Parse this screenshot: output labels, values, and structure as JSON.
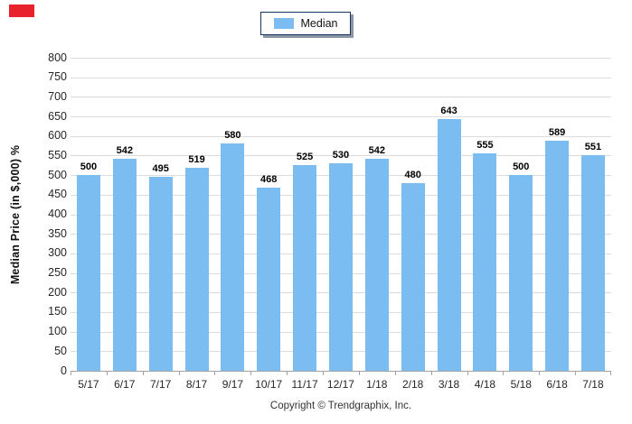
{
  "legend": {
    "label": "Median"
  },
  "footer": {
    "copyright": "Copyright © Trendgraphix, Inc."
  },
  "colors": {
    "bar": "#7CBDF1",
    "gridline": "#DCDCDC",
    "axis_line": "#A3A3A3",
    "tick_text": "#262626",
    "value_label": "#000000",
    "legend_border": "#16365C",
    "red_marker": "#E8232D"
  },
  "chart_data": {
    "type": "bar",
    "title": "",
    "xlabel": "",
    "ylabel": "Median Price (in $,000) %",
    "categories": [
      "5/17",
      "6/17",
      "7/17",
      "8/17",
      "9/17",
      "10/17",
      "11/17",
      "12/17",
      "1/18",
      "2/18",
      "3/18",
      "4/18",
      "5/18",
      "6/18",
      "7/18"
    ],
    "series": [
      {
        "name": "Median",
        "values": [
          500,
          542,
          495,
          519,
          580,
          468,
          525,
          530,
          542,
          480,
          643,
          555,
          500,
          589,
          551
        ]
      }
    ],
    "ylim": [
      0,
      800
    ],
    "ytick_step": 50,
    "grid": true,
    "legend_position": "top-center",
    "value_labels": true
  }
}
